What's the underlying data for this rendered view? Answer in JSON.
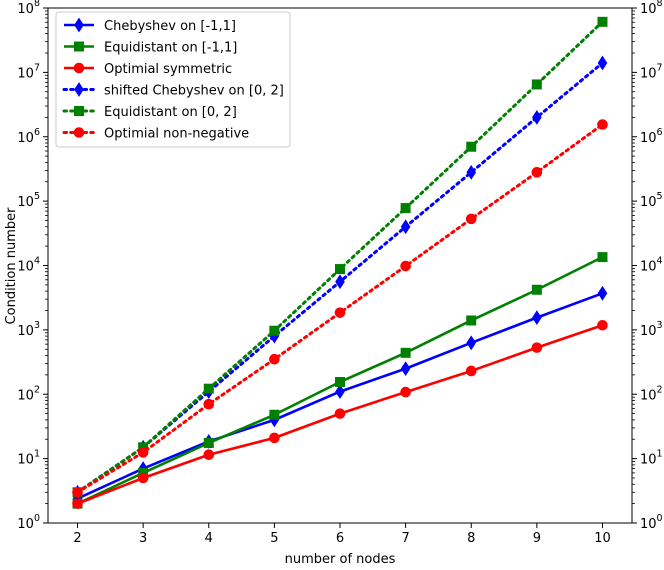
{
  "chart_data": {
    "type": "line",
    "title": "",
    "xlabel": "number of nodes",
    "ylabel": "Condition number",
    "y_scale": "log",
    "xlim": [
      1.55,
      10.45
    ],
    "ylim": [
      1,
      100000000
    ],
    "x_ticks": [
      2,
      3,
      4,
      5,
      6,
      7,
      8,
      9,
      10
    ],
    "y_ticks": [
      1,
      10,
      100,
      1000,
      10000,
      100000,
      1000000,
      10000000,
      100000000
    ],
    "y_tick_labels": [
      {
        "base": "10",
        "exp": "0"
      },
      {
        "base": "10",
        "exp": "1"
      },
      {
        "base": "10",
        "exp": "2"
      },
      {
        "base": "10",
        "exp": "3"
      },
      {
        "base": "10",
        "exp": "4"
      },
      {
        "base": "10",
        "exp": "5"
      },
      {
        "base": "10",
        "exp": "6"
      },
      {
        "base": "10",
        "exp": "7"
      },
      {
        "base": "10",
        "exp": "8"
      }
    ],
    "right_axis_mirrored": true,
    "grid": false,
    "legend_position": "top-left",
    "x": [
      2,
      3,
      4,
      5,
      6,
      7,
      8,
      9,
      10
    ],
    "series": [
      {
        "name": "Chebyshev on [-1,1]",
        "color": "#0000ff",
        "linestyle": "solid",
        "marker": "diamond",
        "values": [
          2.4,
          7.0,
          18.5,
          40,
          110,
          250,
          630,
          1550,
          3700
        ]
      },
      {
        "name": "Equidistant on [-1,1]",
        "color": "#008000",
        "linestyle": "solid",
        "marker": "square",
        "values": [
          2.0,
          6.0,
          17.5,
          48,
          155,
          440,
          1400,
          4200,
          13500
        ]
      },
      {
        "name": "Optimial symmetric",
        "color": "#ff0000",
        "linestyle": "solid",
        "marker": "circle",
        "values": [
          2.0,
          5.0,
          11.5,
          21,
          50,
          108,
          230,
          530,
          1180
        ]
      },
      {
        "name": "shifted Chebyshev on [0, 2]",
        "color": "#0000ff",
        "linestyle": "dotted",
        "marker": "diamond",
        "values": [
          3.0,
          15,
          110,
          800,
          5600,
          40000,
          280000,
          2000000,
          14000000
        ]
      },
      {
        "name": "Equidistant on [0, 2]",
        "color": "#008000",
        "linestyle": "dotted",
        "marker": "square",
        "values": [
          3.0,
          15,
          122,
          970,
          8800,
          78000,
          700000,
          6500000,
          61000000
        ]
      },
      {
        "name": "Optimial non-negative",
        "color": "#ff0000",
        "linestyle": "dotted",
        "marker": "circle",
        "values": [
          3.0,
          12.5,
          70,
          350,
          1850,
          9800,
          53000,
          280000,
          1550000
        ]
      }
    ]
  }
}
